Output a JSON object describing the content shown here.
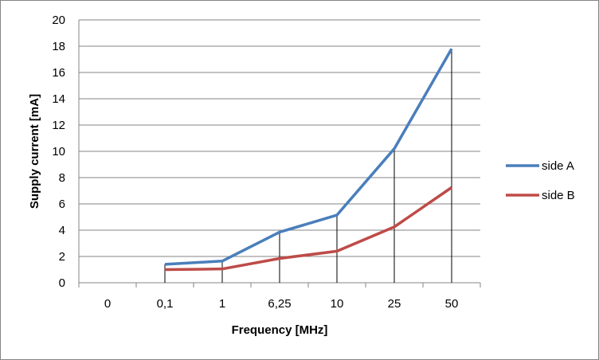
{
  "chart_data": {
    "type": "line",
    "title": "",
    "xlabel": "Frequency [MHz]",
    "ylabel": "Supply current [mA]",
    "categories": [
      "0",
      "0,1",
      "1",
      "6,25",
      "10",
      "25",
      "50"
    ],
    "ylim": [
      0,
      20
    ],
    "yticks": [
      0,
      2,
      4,
      6,
      8,
      10,
      12,
      14,
      16,
      18,
      20
    ],
    "grid": true,
    "legend_position": "right",
    "series": [
      {
        "name": "side A",
        "color": "#4a7ebb",
        "values": [
          null,
          1.4,
          1.65,
          3.85,
          5.15,
          10.2,
          17.8
        ]
      },
      {
        "name": "side B",
        "color": "#be4b48",
        "values": [
          null,
          1.0,
          1.05,
          1.85,
          2.4,
          4.25,
          7.25
        ]
      }
    ],
    "drop_lines": true
  }
}
